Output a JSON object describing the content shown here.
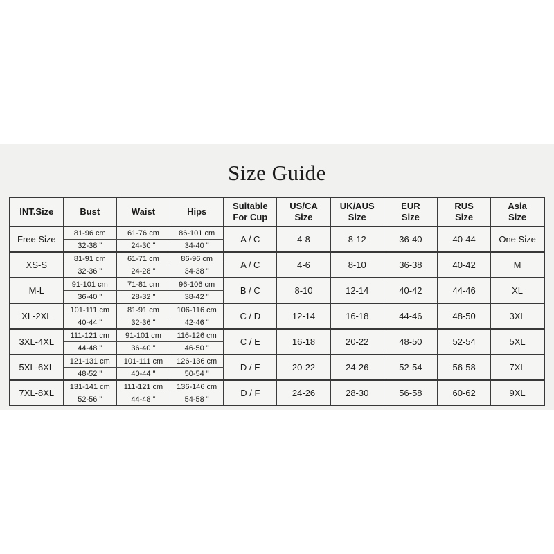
{
  "page": {
    "title": "Size Guide",
    "panel_background": "#f1f1ef",
    "page_background": "#ffffff",
    "border_color": "#383838"
  },
  "table": {
    "headers": [
      "INT.Size",
      "Bust",
      "Waist",
      "Hips",
      "Suitable\nFor Cup",
      "US/CA\nSize",
      "UK/AUS\nSize",
      "EUR\nSize",
      "RUS\nSize",
      "Asia\nSize"
    ],
    "rows": [
      {
        "int_size": "Free Size",
        "bust_cm": "81-96 cm",
        "bust_in": "32-38 \"",
        "waist_cm": "61-76 cm",
        "waist_in": "24-30 \"",
        "hips_cm": "86-101 cm",
        "hips_in": "34-40 \"",
        "cup": "A / C",
        "us_ca": "4-8",
        "uk_aus": "8-12",
        "eur": "36-40",
        "rus": "40-44",
        "asia": "One Size"
      },
      {
        "int_size": "XS-S",
        "bust_cm": "81-91 cm",
        "bust_in": "32-36 \"",
        "waist_cm": "61-71 cm",
        "waist_in": "24-28 \"",
        "hips_cm": "86-96 cm",
        "hips_in": "34-38 \"",
        "cup": "A / C",
        "us_ca": "4-6",
        "uk_aus": "8-10",
        "eur": "36-38",
        "rus": "40-42",
        "asia": "M"
      },
      {
        "int_size": "M-L",
        "bust_cm": "91-101 cm",
        "bust_in": "36-40 \"",
        "waist_cm": "71-81 cm",
        "waist_in": "28-32 \"",
        "hips_cm": "96-106 cm",
        "hips_in": "38-42 \"",
        "cup": "B / C",
        "us_ca": "8-10",
        "uk_aus": "12-14",
        "eur": "40-42",
        "rus": "44-46",
        "asia": "XL"
      },
      {
        "int_size": "XL-2XL",
        "bust_cm": "101-111 cm",
        "bust_in": "40-44 \"",
        "waist_cm": "81-91 cm",
        "waist_in": "32-36 \"",
        "hips_cm": "106-116 cm",
        "hips_in": "42-46 \"",
        "cup": "C / D",
        "us_ca": "12-14",
        "uk_aus": "16-18",
        "eur": "44-46",
        "rus": "48-50",
        "asia": "3XL"
      },
      {
        "int_size": "3XL-4XL",
        "bust_cm": "111-121 cm",
        "bust_in": "44-48 \"",
        "waist_cm": "91-101 cm",
        "waist_in": "36-40 \"",
        "hips_cm": "116-126 cm",
        "hips_in": "46-50 \"",
        "cup": "C / E",
        "us_ca": "16-18",
        "uk_aus": "20-22",
        "eur": "48-50",
        "rus": "52-54",
        "asia": "5XL"
      },
      {
        "int_size": "5XL-6XL",
        "bust_cm": "121-131 cm",
        "bust_in": "48-52 \"",
        "waist_cm": "101-111 cm",
        "waist_in": "40-44 \"",
        "hips_cm": "126-136 cm",
        "hips_in": "50-54 \"",
        "cup": "D / E",
        "us_ca": "20-22",
        "uk_aus": "24-26",
        "eur": "52-54",
        "rus": "56-58",
        "asia": "7XL"
      },
      {
        "int_size": "7XL-8XL",
        "bust_cm": "131-141 cm",
        "bust_in": "52-56 \"",
        "waist_cm": "111-121 cm",
        "waist_in": "44-48 \"",
        "hips_cm": "136-146 cm",
        "hips_in": "54-58 \"",
        "cup": "D / F",
        "us_ca": "24-26",
        "uk_aus": "28-30",
        "eur": "56-58",
        "rus": "60-62",
        "asia": "9XL"
      }
    ]
  }
}
